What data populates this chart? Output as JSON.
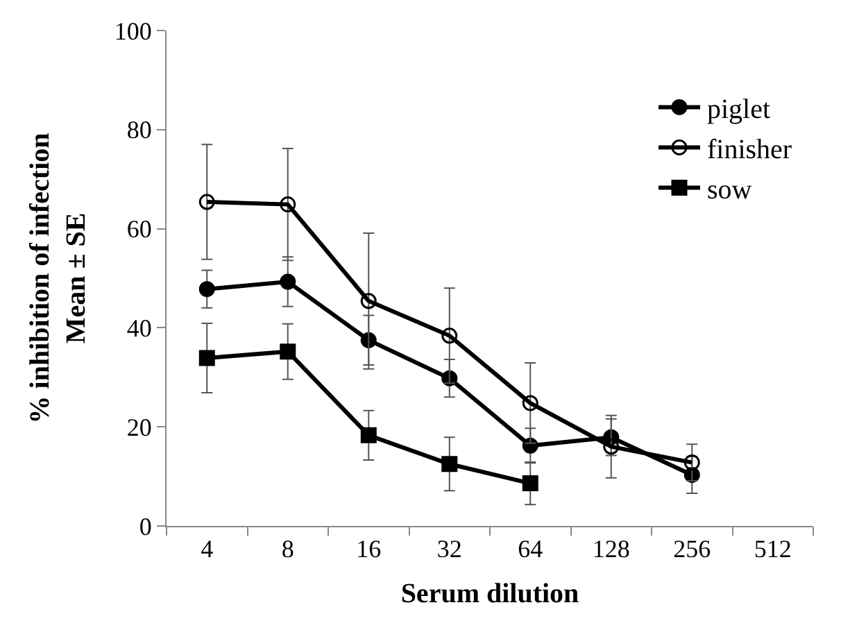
{
  "chart_data": {
    "type": "line",
    "xlabel": "Serum dilution",
    "ylabel": "% inhibition of infection\nMean ± SE",
    "categories": [
      "4",
      "8",
      "16",
      "32",
      "64",
      "128",
      "256",
      "512"
    ],
    "ylim": [
      0,
      100
    ],
    "yticks": [
      0,
      20,
      40,
      60,
      80,
      100
    ],
    "legend": "top right",
    "series": [
      {
        "name": "piglet",
        "color": "#000000",
        "marker": "circle",
        "values": [
          47.8,
          49.3,
          37.5,
          29.8,
          16.2,
          17.9,
          10.3,
          null
        ],
        "errors": [
          3.8,
          5,
          5,
          3.8,
          3.5,
          3.7,
          3.7,
          null
        ]
      },
      {
        "name": "finisher",
        "color": "#000000",
        "marker": "circle-open",
        "values": [
          65.4,
          64.9,
          45.4,
          38.4,
          24.8,
          16,
          12.8,
          null
        ],
        "errors": [
          11.6,
          11.3,
          13.7,
          9.6,
          8.1,
          6.3,
          3.7,
          null
        ]
      },
      {
        "name": "sow",
        "color": "#000000",
        "marker": "square",
        "values": [
          33.9,
          35.2,
          18.3,
          12.5,
          8.6,
          null,
          null,
          null
        ],
        "errors": [
          7,
          5.6,
          5,
          5.4,
          4.3,
          null,
          null,
          null
        ]
      }
    ]
  }
}
